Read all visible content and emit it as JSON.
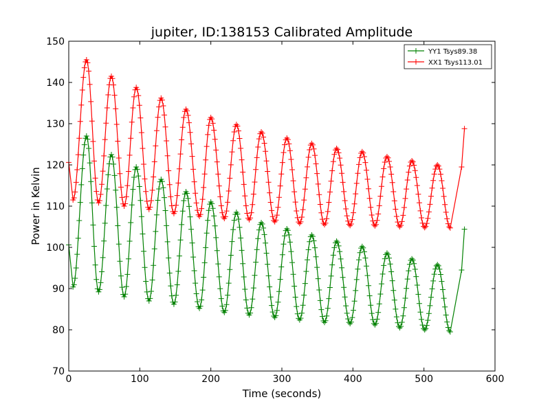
{
  "chart_data": {
    "type": "line",
    "title": "jupiter, ID:138153 Calibrated Amplitude",
    "xlabel": "Time (seconds)",
    "ylabel": "Power in Kelvin",
    "xlim": [
      0,
      600
    ],
    "ylim": [
      70,
      150
    ],
    "xticks": [
      0,
      100,
      200,
      300,
      400,
      500,
      600
    ],
    "yticks": [
      70,
      80,
      90,
      100,
      110,
      120,
      130,
      140,
      150
    ],
    "grid": false,
    "legend": {
      "placement": "top-right"
    },
    "marker": "+",
    "oscillation_period_s": 35.5,
    "sample_interval_s": 1.5,
    "series": [
      {
        "name": "YY1 Tsys89.38",
        "color": "#008000",
        "start": {
          "x": 0,
          "y": 100.6
        },
        "peaks": [
          [
            25,
            127
          ],
          [
            60,
            122.5
          ],
          [
            95,
            119.5
          ],
          [
            130,
            116.5
          ],
          [
            165,
            113.5
          ],
          [
            200,
            111
          ],
          [
            236,
            108.5
          ],
          [
            271,
            106
          ],
          [
            307,
            104.5
          ],
          [
            342,
            103
          ],
          [
            377,
            101.5
          ],
          [
            413,
            100.2
          ],
          [
            448,
            98.6
          ],
          [
            483,
            97.2
          ],
          [
            519,
            95.8
          ]
        ],
        "troughs": [
          [
            6,
            90.4
          ],
          [
            42,
            89.2
          ],
          [
            78,
            88
          ],
          [
            113,
            87
          ],
          [
            148,
            86.2
          ],
          [
            184,
            85.2
          ],
          [
            219,
            84.2
          ],
          [
            254,
            83.6
          ],
          [
            290,
            83
          ],
          [
            325,
            82.4
          ],
          [
            360,
            81.8
          ],
          [
            396,
            81.5
          ],
          [
            431,
            81.2
          ],
          [
            466,
            80.5
          ],
          [
            501,
            80
          ],
          [
            537,
            79.5
          ]
        ],
        "end": [
          [
            553,
            94.5
          ],
          [
            557,
            104.4
          ]
        ]
      },
      {
        "name": "XX1 Tsys113.01",
        "color": "#ff0000",
        "start": {
          "x": 0,
          "y": 120.6
        },
        "peaks": [
          [
            25,
            145.5
          ],
          [
            60,
            141.5
          ],
          [
            95,
            138.8
          ],
          [
            130,
            136.2
          ],
          [
            165,
            133.5
          ],
          [
            200,
            131.5
          ],
          [
            236,
            129.8
          ],
          [
            271,
            128
          ],
          [
            307,
            126.5
          ],
          [
            342,
            125.2
          ],
          [
            377,
            124
          ],
          [
            413,
            123.2
          ],
          [
            448,
            122
          ],
          [
            483,
            121
          ],
          [
            519,
            120
          ]
        ],
        "troughs": [
          [
            6,
            111.5
          ],
          [
            42,
            110.8
          ],
          [
            78,
            110
          ],
          [
            113,
            109.2
          ],
          [
            148,
            108.2
          ],
          [
            184,
            107.5
          ],
          [
            219,
            107
          ],
          [
            254,
            106.7
          ],
          [
            290,
            106.2
          ],
          [
            325,
            105.8
          ],
          [
            360,
            105.5
          ],
          [
            396,
            105.3
          ],
          [
            431,
            105.2
          ],
          [
            466,
            105
          ],
          [
            501,
            104.8
          ],
          [
            537,
            104.7
          ]
        ],
        "end": [
          [
            553,
            119.5
          ],
          [
            557,
            128.8
          ]
        ]
      }
    ]
  }
}
